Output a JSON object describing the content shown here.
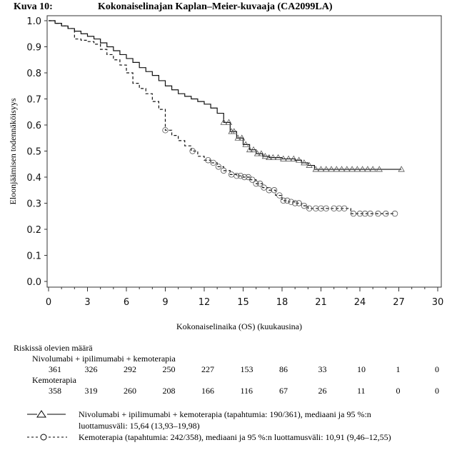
{
  "figure": {
    "label": "Kuva 10:",
    "title": "Kokonaiselinajan Kaplan–Meier-kuvaaja (CA2099LA)"
  },
  "chart_data": {
    "type": "line",
    "title": "Kokonaiselinajan Kaplan–Meier-kuvaaja (CA2099LA)",
    "xlabel": "Kokonaiselinaika (OS) (kuukausina)",
    "ylabel": "Eloonjäämisen todennäköisyys",
    "xlim": [
      0,
      30
    ],
    "ylim": [
      0.0,
      1.0
    ],
    "x_ticks": [
      0,
      3,
      6,
      9,
      12,
      15,
      18,
      21,
      24,
      27,
      30
    ],
    "x_tick_labels": [
      "0",
      "3",
      "6",
      "9",
      "12",
      "15",
      "18",
      "21",
      "24",
      "27",
      "30"
    ],
    "y_ticks": [
      0.0,
      0.1,
      0.2,
      0.3,
      0.4,
      0.5,
      0.6,
      0.7,
      0.8,
      0.9,
      1.0
    ],
    "y_tick_labels": [
      "0.0",
      "0.1",
      "0.2",
      "0.3",
      "0.4",
      "0.5",
      "0.6",
      "0.7",
      "0.8",
      "0.9",
      "1.0"
    ],
    "grid": false,
    "series": [
      {
        "name": "Nivolumabi + ipilimumabi + kemoterapia",
        "style": "solid",
        "censor_marker": "triangle",
        "points": [
          [
            0,
            1.0
          ],
          [
            0.5,
            0.99
          ],
          [
            1,
            0.98
          ],
          [
            1.5,
            0.97
          ],
          [
            2,
            0.96
          ],
          [
            2.5,
            0.95
          ],
          [
            3,
            0.94
          ],
          [
            3.5,
            0.93
          ],
          [
            4,
            0.915
          ],
          [
            4.5,
            0.9
          ],
          [
            5,
            0.885
          ],
          [
            5.5,
            0.87
          ],
          [
            6,
            0.855
          ],
          [
            6.5,
            0.84
          ],
          [
            7,
            0.82
          ],
          [
            7.5,
            0.805
          ],
          [
            8,
            0.79
          ],
          [
            8.5,
            0.77
          ],
          [
            9,
            0.75
          ],
          [
            9.5,
            0.735
          ],
          [
            10,
            0.72
          ],
          [
            10.5,
            0.71
          ],
          [
            11,
            0.7
          ],
          [
            11.5,
            0.69
          ],
          [
            12,
            0.68
          ],
          [
            12.5,
            0.665
          ],
          [
            13,
            0.645
          ],
          [
            13.5,
            0.61
          ],
          [
            14,
            0.575
          ],
          [
            14.5,
            0.55
          ],
          [
            15,
            0.525
          ],
          [
            15.5,
            0.505
          ],
          [
            16,
            0.49
          ],
          [
            16.5,
            0.48
          ],
          [
            17,
            0.475
          ],
          [
            18,
            0.47
          ],
          [
            19,
            0.465
          ],
          [
            19.5,
            0.455
          ],
          [
            20,
            0.445
          ],
          [
            20.5,
            0.43
          ],
          [
            27.2,
            0.43
          ]
        ],
        "censor_times": [
          13.5,
          13.9,
          14.1,
          14.3,
          14.6,
          14.9,
          15.2,
          15.5,
          15.8,
          16.1,
          16.4,
          16.7,
          17.0,
          17.3,
          17.7,
          18.1,
          18.5,
          18.9,
          19.3,
          19.7,
          20.1,
          20.6,
          21.0,
          21.4,
          21.8,
          22.2,
          22.6,
          23.0,
          23.4,
          23.8,
          24.2,
          24.6,
          25.0,
          25.5,
          27.2
        ],
        "events": 190,
        "n": 361,
        "median": 15.64,
        "ci_95": [
          13.93,
          19.98
        ],
        "at_risk": [
          361,
          326,
          292,
          250,
          227,
          153,
          86,
          33,
          10,
          1,
          0
        ]
      },
      {
        "name": "Kemoterapia",
        "style": "dashed",
        "censor_marker": "circle",
        "points": [
          [
            0,
            1.0
          ],
          [
            0.5,
            0.99
          ],
          [
            1,
            0.98
          ],
          [
            1.5,
            0.97
          ],
          [
            2,
            0.93
          ],
          [
            2.5,
            0.925
          ],
          [
            3,
            0.92
          ],
          [
            3.5,
            0.91
          ],
          [
            4,
            0.89
          ],
          [
            4.5,
            0.87
          ],
          [
            5,
            0.85
          ],
          [
            5.5,
            0.83
          ],
          [
            6,
            0.8
          ],
          [
            6.5,
            0.76
          ],
          [
            7,
            0.74
          ],
          [
            7.5,
            0.72
          ],
          [
            8,
            0.69
          ],
          [
            8.5,
            0.66
          ],
          [
            9,
            0.58
          ],
          [
            9.5,
            0.56
          ],
          [
            10,
            0.54
          ],
          [
            10.5,
            0.52
          ],
          [
            11,
            0.5
          ],
          [
            11.5,
            0.48
          ],
          [
            12,
            0.465
          ],
          [
            12.5,
            0.455
          ],
          [
            13,
            0.44
          ],
          [
            13.5,
            0.425
          ],
          [
            14,
            0.41
          ],
          [
            14.5,
            0.405
          ],
          [
            15,
            0.4
          ],
          [
            15.5,
            0.39
          ],
          [
            16,
            0.375
          ],
          [
            16.5,
            0.36
          ],
          [
            17,
            0.35
          ],
          [
            17.5,
            0.33
          ],
          [
            18,
            0.31
          ],
          [
            18.5,
            0.305
          ],
          [
            19,
            0.3
          ],
          [
            19.5,
            0.29
          ],
          [
            20,
            0.28
          ],
          [
            23.0,
            0.28
          ],
          [
            23.3,
            0.26
          ],
          [
            26.7,
            0.26
          ]
        ],
        "censor_times": [
          9.0,
          11.1,
          12.3,
          12.7,
          13.1,
          13.5,
          14.1,
          14.5,
          14.8,
          15.1,
          15.4,
          15.7,
          16.0,
          16.3,
          16.6,
          17.0,
          17.4,
          17.8,
          18.1,
          18.4,
          18.7,
          19.0,
          19.3,
          19.7,
          20.1,
          20.6,
          21.0,
          21.4,
          22.0,
          22.4,
          22.8,
          23.5,
          24.0,
          24.4,
          24.8,
          25.4,
          26.0,
          26.7
        ],
        "events": 242,
        "n": 358,
        "median": 10.91,
        "ci_95": [
          9.46,
          12.55
        ],
        "at_risk": [
          358,
          319,
          260,
          208,
          166,
          116,
          67,
          26,
          11,
          0,
          0
        ]
      }
    ],
    "legend_placement": "bottom"
  },
  "risk_table": {
    "title": "Riskissä olevien määrä",
    "groups": [
      {
        "name": "Nivolumabi + ipilimumabi + kemoterapia",
        "values": [
          "361",
          "326",
          "292",
          "250",
          "227",
          "153",
          "86",
          "33",
          "10",
          "1",
          "0"
        ]
      },
      {
        "name": "Kemoterapia",
        "values": [
          "358",
          "319",
          "260",
          "208",
          "166",
          "116",
          "67",
          "26",
          "11",
          "0",
          "0"
        ]
      }
    ]
  },
  "legend": [
    {
      "symbol": "—△——",
      "line1": "Nivolumabi + ipilimumabi + kemoterapia (tapahtumia: 190/361), mediaani ja 95 %:n",
      "line2": "luottamusväli: 15,64 (13,93–19,98)"
    },
    {
      "symbol": "- - -O- - -",
      "line1": "Kemoterapia (tapahtumia: 242/358), mediaani ja 95 %:n luottamusväli: 10,91 (9,46–12,55)"
    }
  ]
}
